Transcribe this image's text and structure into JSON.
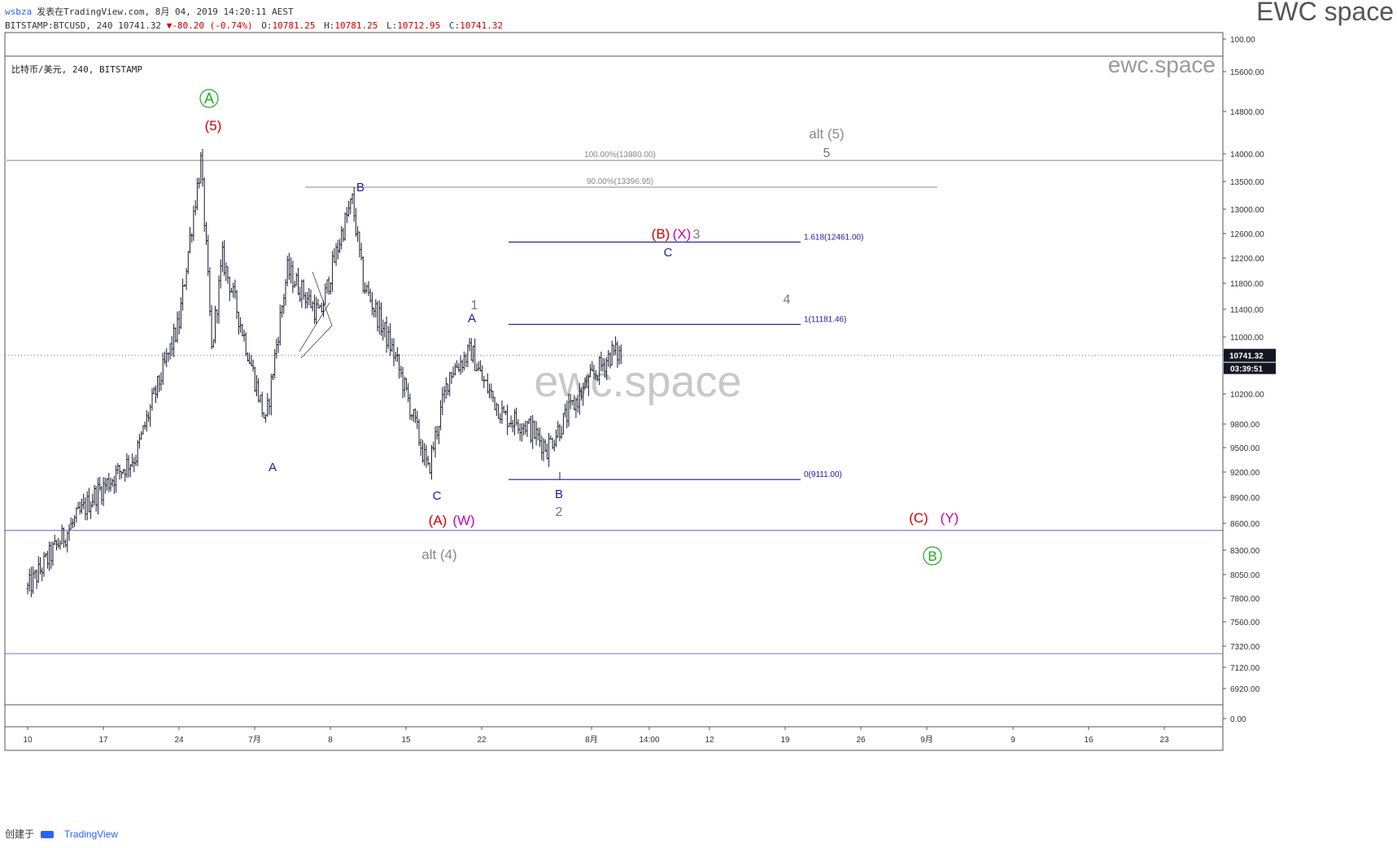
{
  "header": {
    "user": "wsbza",
    "published": "发表在TradingView.com, 8月 04, 2019 14:20:11 AEST",
    "symbol": "BITSTAMP:BTCUSD, 240",
    "last": "10741.32",
    "change": "-80.20 (-0.74%)",
    "open_label": "O:",
    "open": "10781.25",
    "high_label": "H:",
    "high": "10781.25",
    "low_label": "L:",
    "low": "10712.95",
    "close_label": "C:",
    "close": "10741.32",
    "brand": "EWC space"
  },
  "chart_data": {
    "type": "candlestick",
    "title": "比特币/美元, 240, BITSTAMP",
    "watermark": "ewc.space",
    "watermark_small": "ewc.space",
    "y_ticks": [
      "15600.00",
      "14800.00",
      "14000.00",
      "13500.00",
      "13000.00",
      "12600.00",
      "12200.00",
      "11800.00",
      "11400.00",
      "11000.00",
      "10200.00",
      "9800.00",
      "9500.00",
      "9200.00",
      "8900.00",
      "8600.00",
      "8300.00",
      "8050.00",
      "7800.00",
      "7560.00",
      "7320.00",
      "7120.00",
      "6920.00"
    ],
    "indicator_ticks": [
      "100.00",
      "0.00"
    ],
    "x_ticks": [
      "10",
      "17",
      "24",
      "7月",
      "8",
      "15",
      "22",
      "8月",
      "14:00",
      "12",
      "19",
      "26",
      "9月",
      "9",
      "16",
      "23"
    ],
    "price_label": "10741.32",
    "countdown": "03:39:51",
    "fib_retracement": [
      {
        "label": "100.00%(13880.00)",
        "price": 13880
      },
      {
        "label": "90.00%(13396.95)",
        "price": 13396.95
      }
    ],
    "fib_extension": [
      {
        "label": "1.618(12461.00)",
        "price": 12461
      },
      {
        "label": "1(11181.46)",
        "price": 11181.46
      },
      {
        "label": "0(9111.00)",
        "price": 9111
      }
    ],
    "horizontal_lines": [
      8520,
      7250
    ],
    "wave_labels": [
      {
        "text": "A",
        "style": "circle",
        "color": "#22aa22"
      },
      {
        "text": "(5)",
        "color": "#cc0000"
      },
      {
        "text": "A",
        "color": "#1a1aa0"
      },
      {
        "text": "B",
        "color": "#1a1aa0"
      },
      {
        "text": "C",
        "color": "#1a1aa0"
      },
      {
        "text": "(A)",
        "color": "#cc0000"
      },
      {
        "text": "(W)",
        "color": "#cc00aa"
      },
      {
        "text": "alt (4)",
        "color": "#888888"
      },
      {
        "text": "1",
        "color": "#777777"
      },
      {
        "text": "A",
        "color": "#1a1aa0"
      },
      {
        "text": "B",
        "color": "#1a1aa0"
      },
      {
        "text": "2",
        "color": "#777777"
      },
      {
        "text": "(B)",
        "color": "#cc0000"
      },
      {
        "text": "(X)",
        "color": "#cc00aa"
      },
      {
        "text": "3",
        "color": "#777777"
      },
      {
        "text": "C",
        "color": "#1a1aa0"
      },
      {
        "text": "4",
        "color": "#777777"
      },
      {
        "text": "alt (5)",
        "color": "#888888"
      },
      {
        "text": "5",
        "color": "#777777"
      },
      {
        "text": "(C)",
        "color": "#cc0000"
      },
      {
        "text": "(Y)",
        "color": "#cc00aa"
      },
      {
        "text": "B",
        "style": "circle",
        "color": "#22aa22"
      }
    ],
    "anchor_closes": [
      {
        "date": "2019-06-10",
        "close": 7900
      },
      {
        "date": "2019-06-16",
        "close": 8900
      },
      {
        "date": "2019-06-20",
        "close": 9400
      },
      {
        "date": "2019-06-24",
        "close": 11200
      },
      {
        "date": "2019-06-26",
        "close": 13850
      },
      {
        "date": "2019-06-27",
        "close": 10800
      },
      {
        "date": "2019-06-28",
        "close": 12200
      },
      {
        "date": "2019-07-02",
        "close": 9800
      },
      {
        "date": "2019-07-04",
        "close": 12000
      },
      {
        "date": "2019-07-07",
        "close": 11300
      },
      {
        "date": "2019-07-09",
        "close": 12600
      },
      {
        "date": "2019-07-10",
        "close": 13150
      },
      {
        "date": "2019-07-11",
        "close": 11800
      },
      {
        "date": "2019-07-14",
        "close": 10700
      },
      {
        "date": "2019-07-17",
        "close": 9200
      },
      {
        "date": "2019-07-19",
        "close": 10500
      },
      {
        "date": "2019-07-21",
        "close": 10800
      },
      {
        "date": "2019-07-22",
        "close": 10400
      },
      {
        "date": "2019-07-24",
        "close": 9900
      },
      {
        "date": "2019-07-26",
        "close": 9800
      },
      {
        "date": "2019-07-28",
        "close": 9500
      },
      {
        "date": "2019-08-01",
        "close": 10400
      },
      {
        "date": "2019-08-03",
        "close": 10780
      },
      {
        "date": "2019-08-04",
        "close": 10741.32
      }
    ]
  },
  "footer": {
    "created_with": "创建于",
    "tradingview": "TradingView"
  }
}
